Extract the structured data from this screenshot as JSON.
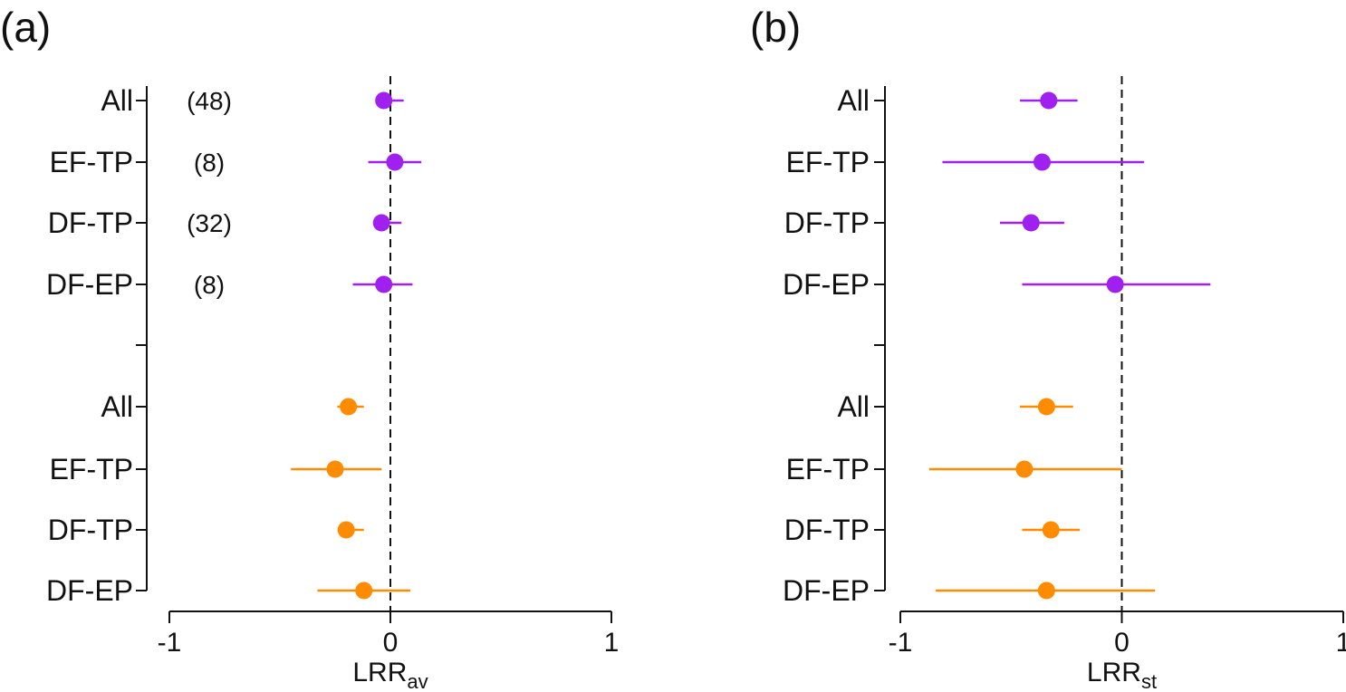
{
  "colors": {
    "group1": "#a020f0",
    "group2": "#ff8c00",
    "axis": "#111111"
  },
  "chart_data": [
    {
      "type": "scatter",
      "panel_label": "(a)",
      "xlabel_main": "LRR",
      "xlabel_sub": "av",
      "xlim": [
        -1,
        1
      ],
      "xticks": [
        "-1",
        "0",
        "1"
      ],
      "reference_line": 0,
      "groups": [
        {
          "color": "group1",
          "rows": [
            {
              "label": "All",
              "n": "(48)",
              "estimate": -0.03,
              "lo": -0.06,
              "hi": 0.06
            },
            {
              "label": "EF-TP",
              "n": "(8)",
              "estimate": 0.02,
              "lo": -0.1,
              "hi": 0.14
            },
            {
              "label": "DF-TP",
              "n": "(32)",
              "estimate": -0.04,
              "lo": -0.07,
              "hi": 0.05
            },
            {
              "label": "DF-EP",
              "n": "(8)",
              "estimate": -0.03,
              "lo": -0.17,
              "hi": 0.1
            }
          ]
        },
        {
          "color": "group2",
          "rows": [
            {
              "label": "All",
              "estimate": -0.19,
              "lo": -0.24,
              "hi": -0.12
            },
            {
              "label": "EF-TP",
              "estimate": -0.25,
              "lo": -0.45,
              "hi": -0.04
            },
            {
              "label": "DF-TP",
              "estimate": -0.2,
              "lo": -0.23,
              "hi": -0.12
            },
            {
              "label": "DF-EP",
              "estimate": -0.12,
              "lo": -0.33,
              "hi": 0.09
            }
          ]
        }
      ]
    },
    {
      "type": "scatter",
      "panel_label": "(b)",
      "xlabel_main": "LRR",
      "xlabel_sub": "st",
      "xlim": [
        -1,
        1
      ],
      "xticks": [
        "-1",
        "0",
        "1"
      ],
      "reference_line": 0,
      "groups": [
        {
          "color": "group1",
          "rows": [
            {
              "label": "All",
              "estimate": -0.33,
              "lo": -0.46,
              "hi": -0.2
            },
            {
              "label": "EF-TP",
              "estimate": -0.36,
              "lo": -0.81,
              "hi": 0.1
            },
            {
              "label": "DF-TP",
              "estimate": -0.41,
              "lo": -0.55,
              "hi": -0.26
            },
            {
              "label": "DF-EP",
              "estimate": -0.03,
              "lo": -0.45,
              "hi": 0.4
            }
          ]
        },
        {
          "color": "group2",
          "rows": [
            {
              "label": "All",
              "estimate": -0.34,
              "lo": -0.46,
              "hi": -0.22
            },
            {
              "label": "EF-TP",
              "estimate": -0.44,
              "lo": -0.87,
              "hi": 0.0
            },
            {
              "label": "DF-TP",
              "estimate": -0.32,
              "lo": -0.45,
              "hi": -0.19
            },
            {
              "label": "DF-EP",
              "estimate": -0.34,
              "lo": -0.84,
              "hi": 0.15
            }
          ]
        }
      ]
    }
  ]
}
